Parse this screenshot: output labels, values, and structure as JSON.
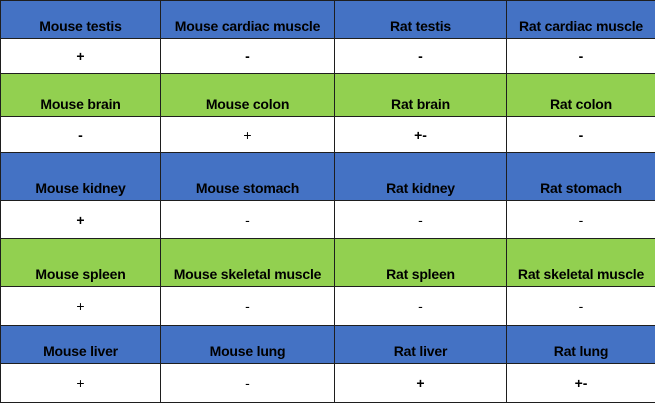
{
  "colors": {
    "blue": "#4472c4",
    "green": "#92d050",
    "value_bg": "#ffffff"
  },
  "rows": [
    {
      "color": "blue",
      "headers": [
        "Mouse testis",
        "Mouse cardiac muscle",
        "Rat testis",
        "Rat cardiac muscle"
      ],
      "values": [
        "+",
        "-",
        "-",
        "-"
      ]
    },
    {
      "color": "green",
      "headers": [
        "Mouse brain",
        "Mouse colon",
        "Rat brain",
        "Rat colon"
      ],
      "values": [
        "-",
        "+",
        "+-",
        "-"
      ]
    },
    {
      "color": "blue",
      "headers": [
        "Mouse kidney",
        "Mouse stomach",
        "Rat kidney",
        "Rat stomach"
      ],
      "values": [
        "+",
        "-",
        "-",
        "-"
      ]
    },
    {
      "color": "green",
      "headers": [
        "Mouse spleen",
        "Mouse skeletal muscle",
        "Rat spleen",
        "Rat skeletal muscle"
      ],
      "values": [
        "+",
        "-",
        "-",
        "-"
      ]
    },
    {
      "color": "blue",
      "headers": [
        "Mouse liver",
        "Mouse lung",
        "Rat liver",
        "Rat lung"
      ],
      "values": [
        "+",
        "-",
        "+",
        "+-"
      ]
    }
  ]
}
